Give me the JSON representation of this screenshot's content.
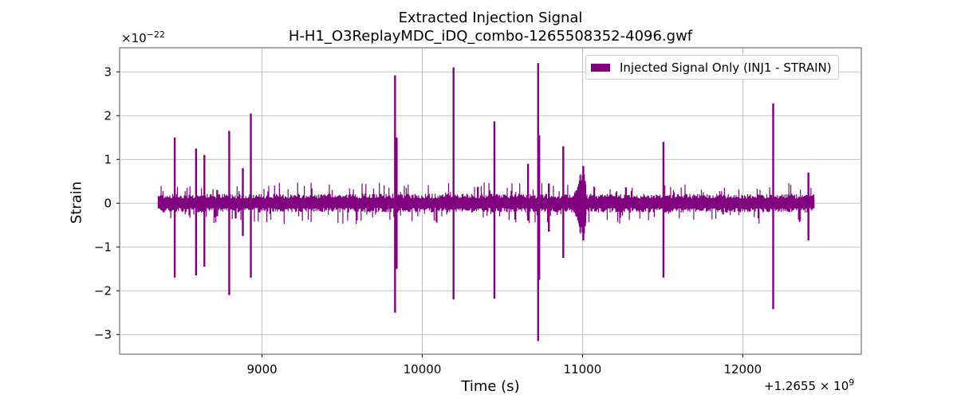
{
  "chart_data": {
    "type": "line",
    "title": "Extracted Injection Signal",
    "subtitle": "H-H1_O3ReplayMDC_iDQ_combo-1265508352-4096.gwf",
    "xlabel": "Time (s)",
    "ylabel": "Strain",
    "x_offset_label": "+1.2655 × 10",
    "x_offset_exp": "9",
    "y_scale_label": "×10",
    "y_scale_exp": "−22",
    "xlim": [
      8111,
      12740
    ],
    "ylim": [
      -3.45,
      3.55
    ],
    "x_ticks": [
      9000,
      10000,
      11000,
      12000
    ],
    "x_tick_labels": [
      "9000",
      "10000",
      "11000",
      "12000"
    ],
    "y_ticks": [
      -3,
      -2,
      -1,
      0,
      1,
      2,
      3
    ],
    "y_tick_labels": [
      "−3",
      "−2",
      "−1",
      "0",
      "1",
      "2",
      "3"
    ],
    "grid": true,
    "legend_position": "top-right",
    "color": "#800080",
    "series": [
      {
        "name": "Injected Signal Only (INJ1 - STRAIN)",
        "x_range": [
          8352,
          12448
        ],
        "baseline_amplitude": 0.12,
        "spikes": [
          {
            "x": 8455,
            "max": 1.5,
            "min": -1.7
          },
          {
            "x": 8588,
            "max": 1.25,
            "min": -1.65
          },
          {
            "x": 8640,
            "max": 1.1,
            "min": -1.45
          },
          {
            "x": 8720,
            "max": 0.3,
            "min": -0.3
          },
          {
            "x": 8795,
            "max": 1.65,
            "min": -2.1
          },
          {
            "x": 8880,
            "max": 0.8,
            "min": -0.75
          },
          {
            "x": 8930,
            "max": 2.05,
            "min": -1.7
          },
          {
            "x": 9830,
            "max": 2.92,
            "min": -2.5
          },
          {
            "x": 9840,
            "max": 1.5,
            "min": -1.5
          },
          {
            "x": 10195,
            "max": 3.1,
            "min": -2.2
          },
          {
            "x": 10450,
            "max": 1.87,
            "min": -2.18
          },
          {
            "x": 10660,
            "max": 0.9,
            "min": -0.4
          },
          {
            "x": 10723,
            "max": 3.2,
            "min": -3.15
          },
          {
            "x": 10730,
            "max": 1.55,
            "min": -1.75
          },
          {
            "x": 10790,
            "max": 0.45,
            "min": -0.65
          },
          {
            "x": 10880,
            "max": 1.3,
            "min": -1.25
          },
          {
            "x": 11005,
            "max": 0.85,
            "min": -0.85
          },
          {
            "x": 11505,
            "max": 1.4,
            "min": -1.7
          },
          {
            "x": 12190,
            "max": 2.28,
            "min": -2.42
          },
          {
            "x": 12410,
            "max": 0.7,
            "min": -0.85
          }
        ]
      }
    ]
  }
}
